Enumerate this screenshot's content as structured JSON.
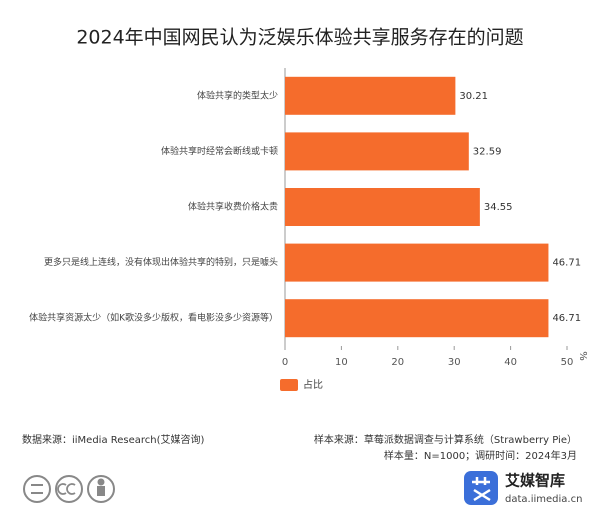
{
  "chart_data": {
    "type": "hbar",
    "title": "2024年中国网民认为泛娱乐体验共享服务存在的问题",
    "categories": [
      "体验共享的类型太少",
      "体验共享时经常会断线或卡顿",
      "体验共享收费价格太贵",
      "更多只是线上连线，没有体现出体验共享的特别，只是噱头",
      "体验共享资源太少（如K歌没多少版权，看电影没多少资源等）"
    ],
    "series": [
      {
        "name": "占比",
        "color": "#f56c2c",
        "values": [
          30.21,
          32.59,
          34.55,
          46.71,
          46.71
        ]
      }
    ],
    "xlim": [
      0,
      50
    ],
    "xticks": [
      0,
      10,
      20,
      30,
      40,
      50
    ],
    "xlabel": "%",
    "legend": "bottom-left",
    "sample_source": "样本来源：草莓派数据调查与计算系统（Strawberry Pie）",
    "sample_size": "样本量：N=1000；调研时间：2024年3月",
    "data_source": "数据来源：iiMedia Research(艾媒咨询)",
    "brand": "艾媒智库",
    "site": "data.iimedia.cn"
  }
}
